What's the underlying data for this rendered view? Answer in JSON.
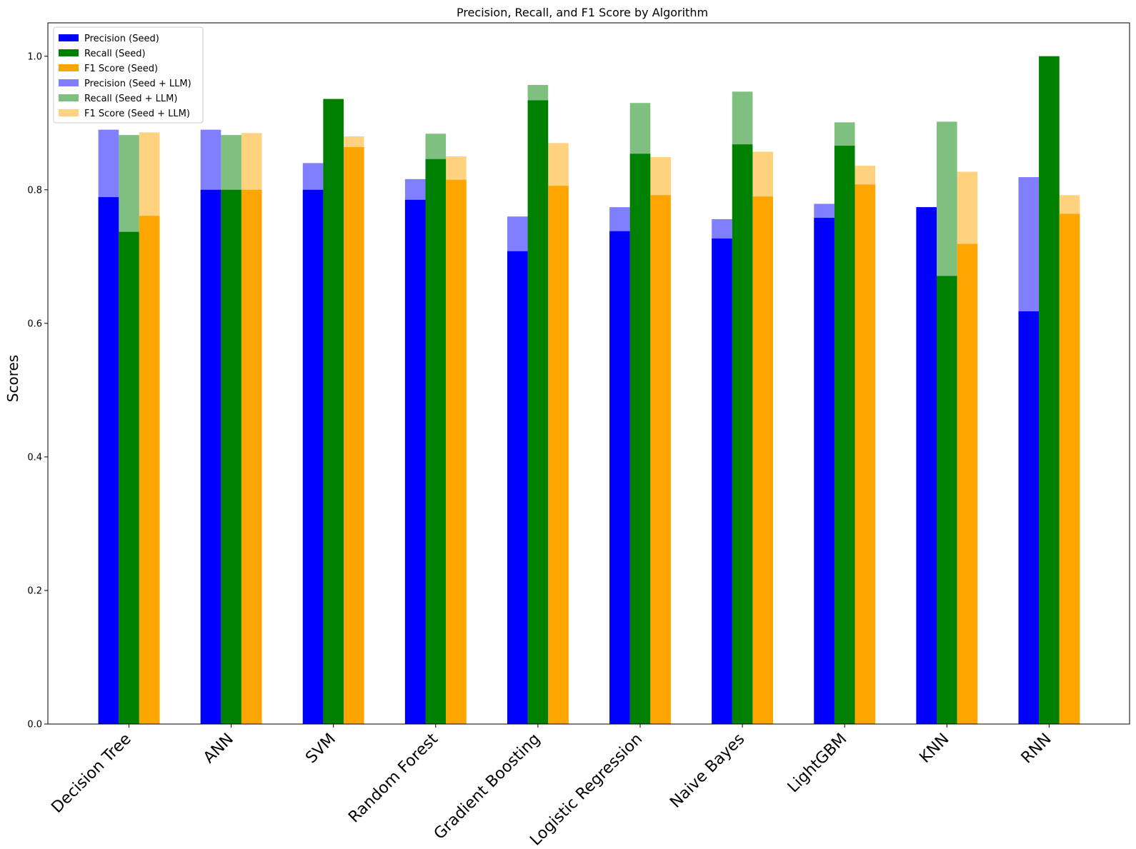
{
  "chart_data": {
    "type": "bar",
    "title": "Precision, Recall, and F1 Score by Algorithm",
    "xlabel": "",
    "ylabel": "Scores",
    "ylim": [
      0,
      1.05
    ],
    "yticks": [
      "0.0",
      "0.2",
      "0.4",
      "0.6",
      "0.8",
      "1.0"
    ],
    "ytick_values": [
      0,
      0.2,
      0.4,
      0.6,
      0.8,
      1.0
    ],
    "grid": false,
    "legend_position": "top-left",
    "categories": [
      "Decision Tree",
      "ANN",
      "SVM",
      "Random Forest",
      "Gradient Boosting",
      "Logistic Regression",
      "Naive Bayes",
      "LightGBM",
      "KNN",
      "RNN"
    ],
    "series": [
      {
        "name": "Precision (Seed)",
        "color": "#0000ff",
        "opacity": 1.0,
        "group": 0,
        "values": [
          0.789,
          0.8,
          0.8,
          0.785,
          0.708,
          0.738,
          0.727,
          0.758,
          0.774,
          0.618
        ]
      },
      {
        "name": "Recall (Seed)",
        "color": "#008000",
        "opacity": 1.0,
        "group": 1,
        "values": [
          0.737,
          0.8,
          0.936,
          0.846,
          0.934,
          0.854,
          0.868,
          0.866,
          0.671,
          1.0
        ]
      },
      {
        "name": "F1 Score (Seed)",
        "color": "#ffa500",
        "opacity": 1.0,
        "group": 2,
        "values": [
          0.761,
          0.8,
          0.864,
          0.815,
          0.806,
          0.792,
          0.79,
          0.808,
          0.719,
          0.764
        ]
      },
      {
        "name": "Precision (Seed + LLM)",
        "color": "#0000ff",
        "opacity": 0.5,
        "group": 0,
        "values": [
          0.89,
          0.89,
          0.84,
          0.816,
          0.76,
          0.774,
          0.756,
          0.779,
          0.774,
          0.819
        ]
      },
      {
        "name": "Recall (Seed + LLM)",
        "color": "#008000",
        "opacity": 0.5,
        "group": 1,
        "values": [
          0.882,
          0.882,
          0.936,
          0.884,
          0.957,
          0.93,
          0.947,
          0.901,
          0.902,
          1.0
        ]
      },
      {
        "name": "F1 Score (Seed + LLM)",
        "color": "#ffa500",
        "opacity": 0.5,
        "group": 2,
        "values": [
          0.886,
          0.885,
          0.88,
          0.85,
          0.87,
          0.849,
          0.857,
          0.836,
          0.827,
          0.792
        ]
      }
    ]
  }
}
